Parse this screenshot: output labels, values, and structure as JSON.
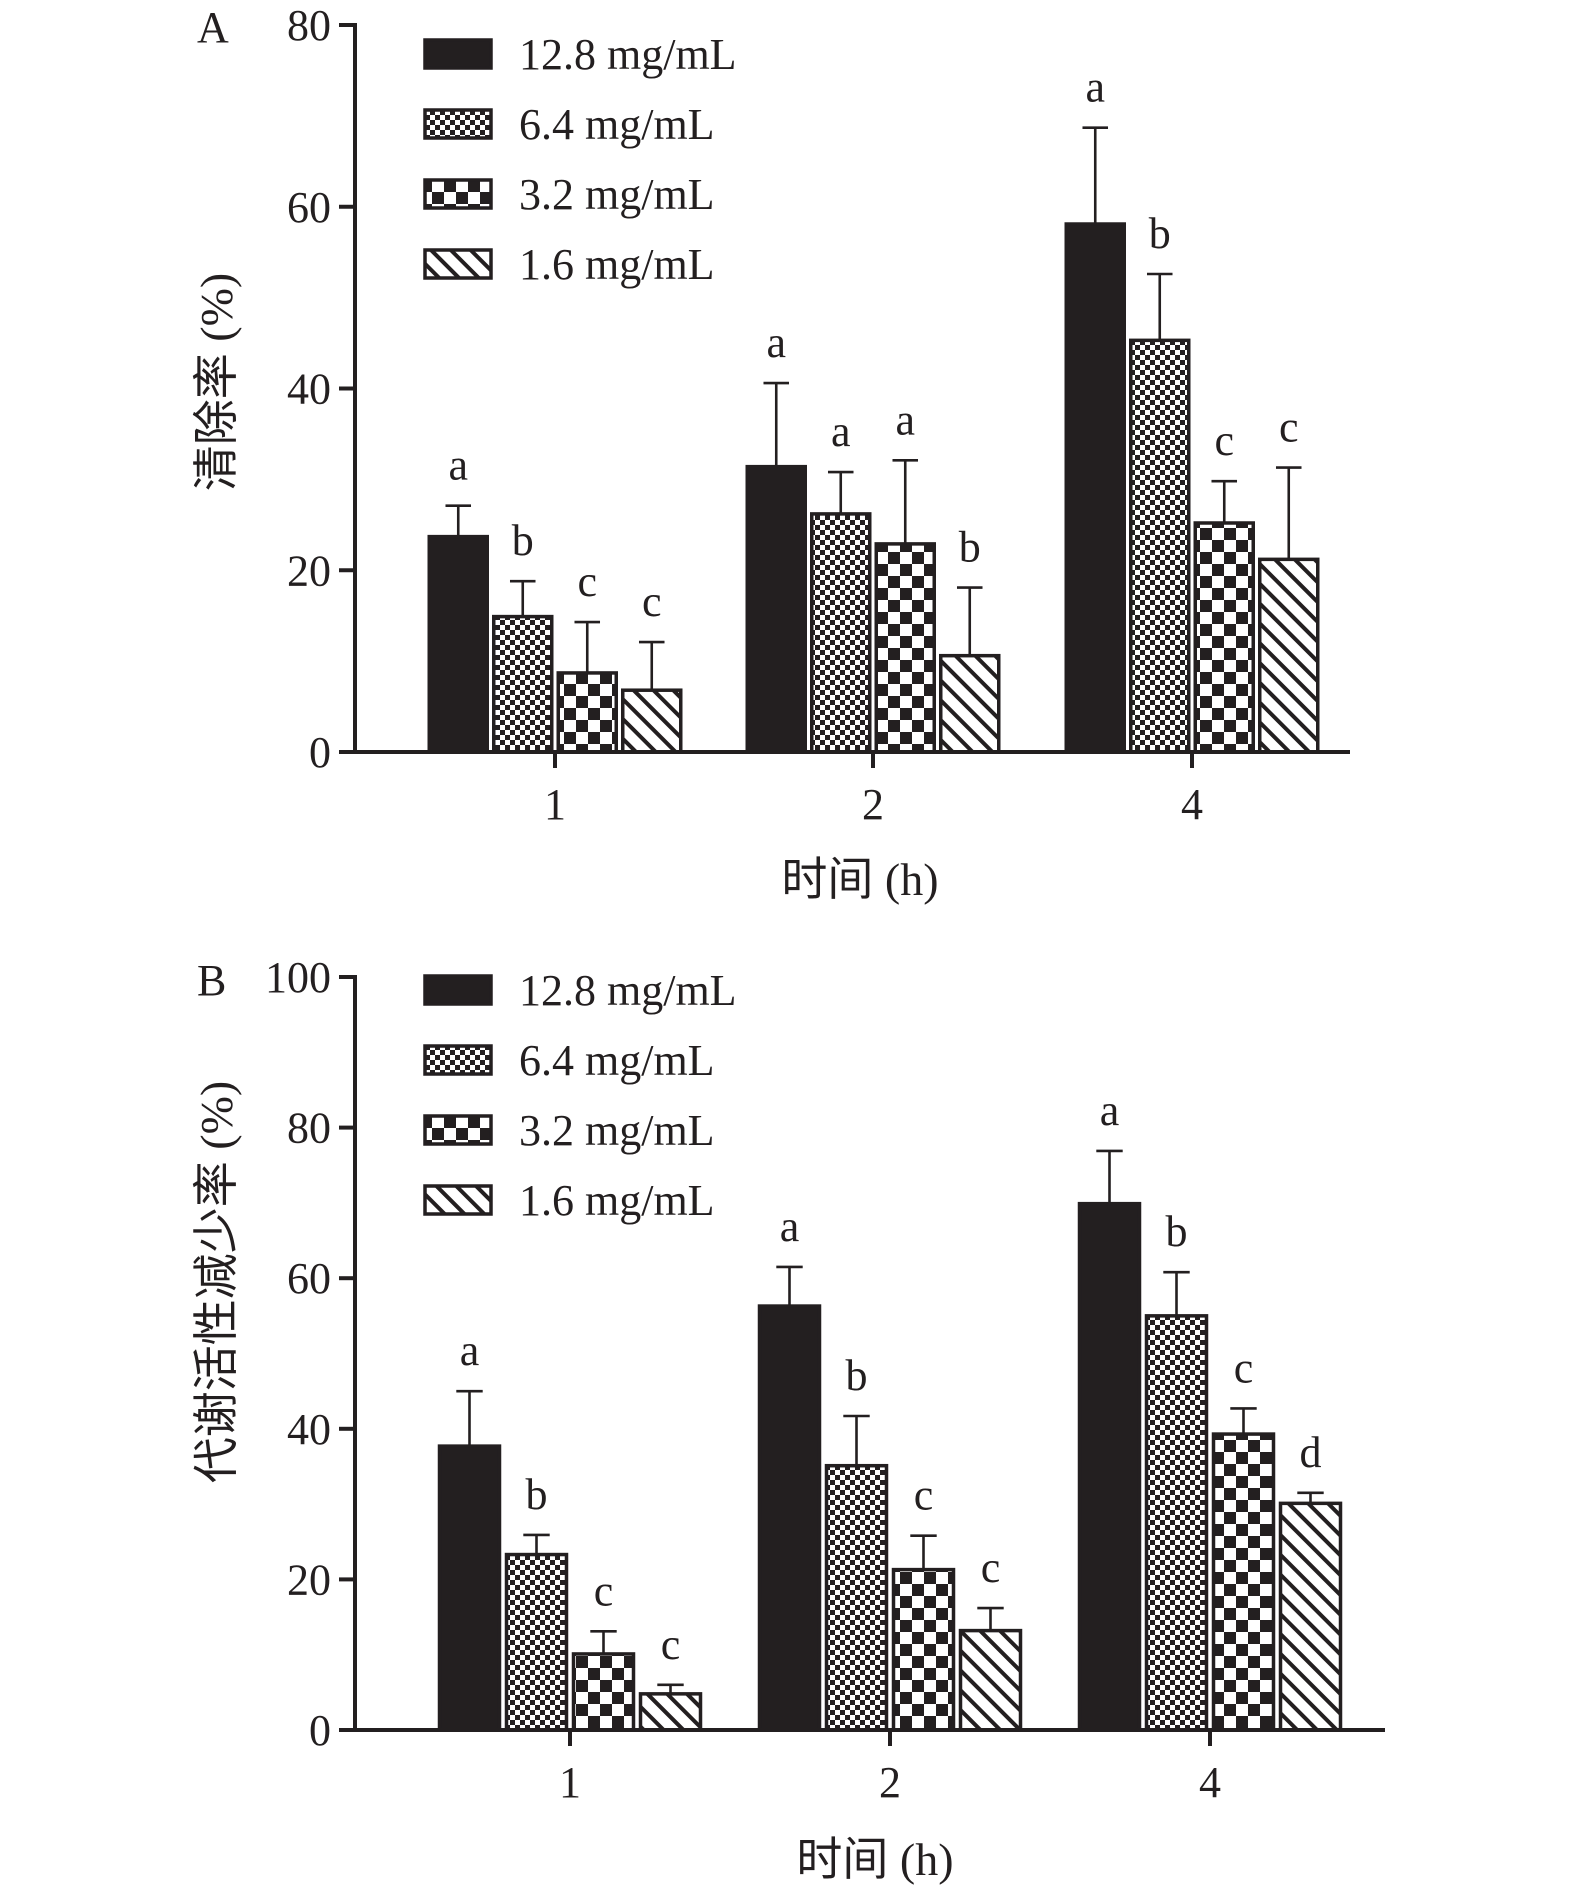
{
  "chart_data": [
    {
      "type": "bar",
      "panel_label": "A",
      "ylabel": "清除率 (%)",
      "xlabel": "时间 (h)",
      "categories": [
        "1",
        "2",
        "4"
      ],
      "ylim": [
        0,
        80
      ],
      "yticks": [
        0,
        20,
        40,
        60,
        80
      ],
      "legend_position": "top-left",
      "series": [
        {
          "name": "12.8 mg/mL",
          "pattern": "solid",
          "values": [
            23.7,
            31.4,
            58.1
          ],
          "errors": [
            3.4,
            9.2,
            10.6
          ],
          "letters": [
            "a",
            "a",
            "a"
          ]
        },
        {
          "name": "6.4 mg/mL",
          "pattern": "fine-check",
          "values": [
            14.9,
            26.2,
            45.3
          ],
          "errors": [
            3.9,
            4.6,
            7.3
          ],
          "letters": [
            "b",
            "a",
            "b"
          ]
        },
        {
          "name": "3.2 mg/mL",
          "pattern": "coarse-check",
          "values": [
            8.7,
            22.9,
            25.2
          ],
          "errors": [
            5.6,
            9.2,
            4.6
          ],
          "letters": [
            "c",
            "a",
            "c"
          ]
        },
        {
          "name": "1.6 mg/mL",
          "pattern": "diagonal",
          "values": [
            6.8,
            10.6,
            21.2
          ],
          "errors": [
            5.3,
            7.5,
            10.1
          ],
          "letters": [
            "c",
            "b",
            "c"
          ]
        }
      ]
    },
    {
      "type": "bar",
      "panel_label": "B",
      "ylabel": "代谢活性减少率 (%)",
      "xlabel": "时间 (h)",
      "categories": [
        "1",
        "2",
        "4"
      ],
      "ylim": [
        0,
        100
      ],
      "yticks": [
        0,
        20,
        40,
        60,
        80,
        100
      ],
      "legend_position": "top-left",
      "series": [
        {
          "name": "12.8 mg/mL",
          "pattern": "solid",
          "values": [
            37.7,
            56.3,
            69.9
          ],
          "errors": [
            7.3,
            5.2,
            7.0
          ],
          "letters": [
            "a",
            "a",
            "a"
          ]
        },
        {
          "name": "6.4 mg/mL",
          "pattern": "fine-check",
          "values": [
            23.3,
            35.1,
            55.0
          ],
          "errors": [
            2.6,
            6.6,
            5.8
          ],
          "letters": [
            "b",
            "b",
            "b"
          ]
        },
        {
          "name": "3.2 mg/mL",
          "pattern": "coarse-check",
          "values": [
            10.1,
            21.3,
            39.3
          ],
          "errors": [
            3.0,
            4.5,
            3.4
          ],
          "letters": [
            "c",
            "c",
            "c"
          ]
        },
        {
          "name": "1.6 mg/mL",
          "pattern": "diagonal",
          "values": [
            4.8,
            13.2,
            30.1
          ],
          "errors": [
            1.2,
            3.0,
            1.4
          ],
          "letters": [
            "c",
            "c",
            "d"
          ]
        }
      ]
    }
  ]
}
